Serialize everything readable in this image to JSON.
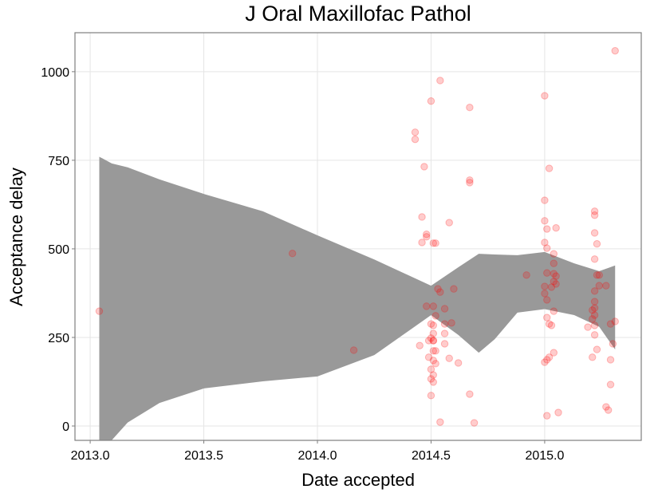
{
  "chart_data": {
    "type": "scatter",
    "title": "J Oral Maxillofac Pathol",
    "x_label": "Date accepted",
    "y_label": "Acceptance delay",
    "xlim": [
      2012.933,
      2015.425
    ],
    "ylim": [
      -40.5,
      1110
    ],
    "xticks": [
      {
        "value": 2013,
        "label": "2013.0"
      },
      2013.5,
      {
        "value": 2014,
        "label": "2014.0"
      },
      2014.5,
      {
        "value": 2015,
        "label": "2015.0"
      }
    ],
    "yticks": [
      0,
      250,
      500,
      750,
      1000
    ],
    "grid": true,
    "band": {
      "color": "#999999",
      "x": [
        2013.04,
        2013.095,
        2013.165,
        2013.305,
        2013.5,
        2013.76,
        2014.0,
        2014.25,
        2014.5,
        2014.62,
        2014.71,
        2014.78,
        2014.88,
        2015.0,
        2015.13,
        2015.24,
        2015.31
      ],
      "upper": [
        760,
        741,
        730,
        696,
        655,
        606,
        538,
        470,
        396,
        448,
        486,
        484,
        482,
        491,
        459,
        437,
        453
      ],
      "lower": [
        -200,
        -40,
        10,
        65,
        106,
        126,
        140,
        200,
        313,
        257,
        207,
        245,
        320,
        330,
        313,
        280,
        216
      ]
    },
    "series": [
      {
        "color": "#ff0000",
        "x": [
          2013.04,
          2013.89,
          2014.16,
          2014.43,
          2014.43,
          2014.47,
          2014.46,
          2014.46,
          2014.48,
          2014.48,
          2014.5,
          2014.51,
          2014.52,
          2014.45,
          2014.48,
          2014.51,
          2014.5,
          2014.51,
          2014.5,
          2014.51,
          2014.49,
          2014.51,
          2014.52,
          2014.51,
          2014.49,
          2014.51,
          2014.52,
          2014.5,
          2014.51,
          2014.5,
          2014.51,
          2014.5,
          2014.51,
          2014.52,
          2014.53,
          2014.54,
          2014.54,
          2014.54,
          2014.56,
          2014.56,
          2014.56,
          2014.56,
          2014.58,
          2014.58,
          2014.59,
          2014.6,
          2014.62,
          2014.67,
          2014.67,
          2014.67,
          2014.67,
          2014.69,
          2014.92,
          2015.0,
          2015.0,
          2015.0,
          2015.01,
          2015.0,
          2015.01,
          2015.01,
          2015.0,
          2015.0,
          2015.01,
          2015.01,
          2015.02,
          2015.03,
          2015.03,
          2015.04,
          2015.04,
          2015.02,
          2015.05,
          2015.04,
          2015.04,
          2015.05,
          2015.05,
          2015.04,
          2015.0,
          2015.01,
          2015.02,
          2015.04,
          2015.01,
          2015.06,
          2015.22,
          2015.22,
          2015.22,
          2015.23,
          2015.22,
          2015.23,
          2015.24,
          2015.22,
          2015.22,
          2015.21,
          2015.22,
          2015.22,
          2015.21,
          2015.22,
          2015.22,
          2015.23,
          2015.21,
          2015.19,
          2015.24,
          2015.27,
          2015.27,
          2015.28,
          2015.29,
          2015.29,
          2015.29,
          2015.3,
          2015.31,
          2015.31
        ],
        "values": [
          324,
          487,
          214,
          829,
          809,
          732,
          590,
          518,
          541,
          534,
          917,
          516,
          516,
          227,
          338,
          338,
          288,
          284,
          248,
          241,
          241,
          241,
          212,
          212,
          194,
          185,
          176,
          160,
          144,
          133,
          124,
          86,
          261,
          311,
          387,
          975,
          11,
          378,
          288,
          261,
          232,
          331,
          574,
          191,
          291,
          387,
          178,
          90,
          899,
          694,
          687,
          9,
          426,
          932,
          637,
          579,
          556,
          518,
          502,
          432,
          394,
          374,
          356,
          306,
          288,
          284,
          392,
          408,
          430,
          727,
          559,
          486,
          459,
          423,
          401,
          324,
          180,
          187,
          194,
          207,
          29,
          38,
          606,
          595,
          545,
          514,
          471,
          426,
          426,
          381,
          351,
          327,
          333,
          313,
          302,
          284,
          257,
          216,
          194,
          279,
          396,
          396,
          54,
          45,
          187,
          117,
          288,
          232,
          295,
          1059
        ]
      }
    ]
  }
}
